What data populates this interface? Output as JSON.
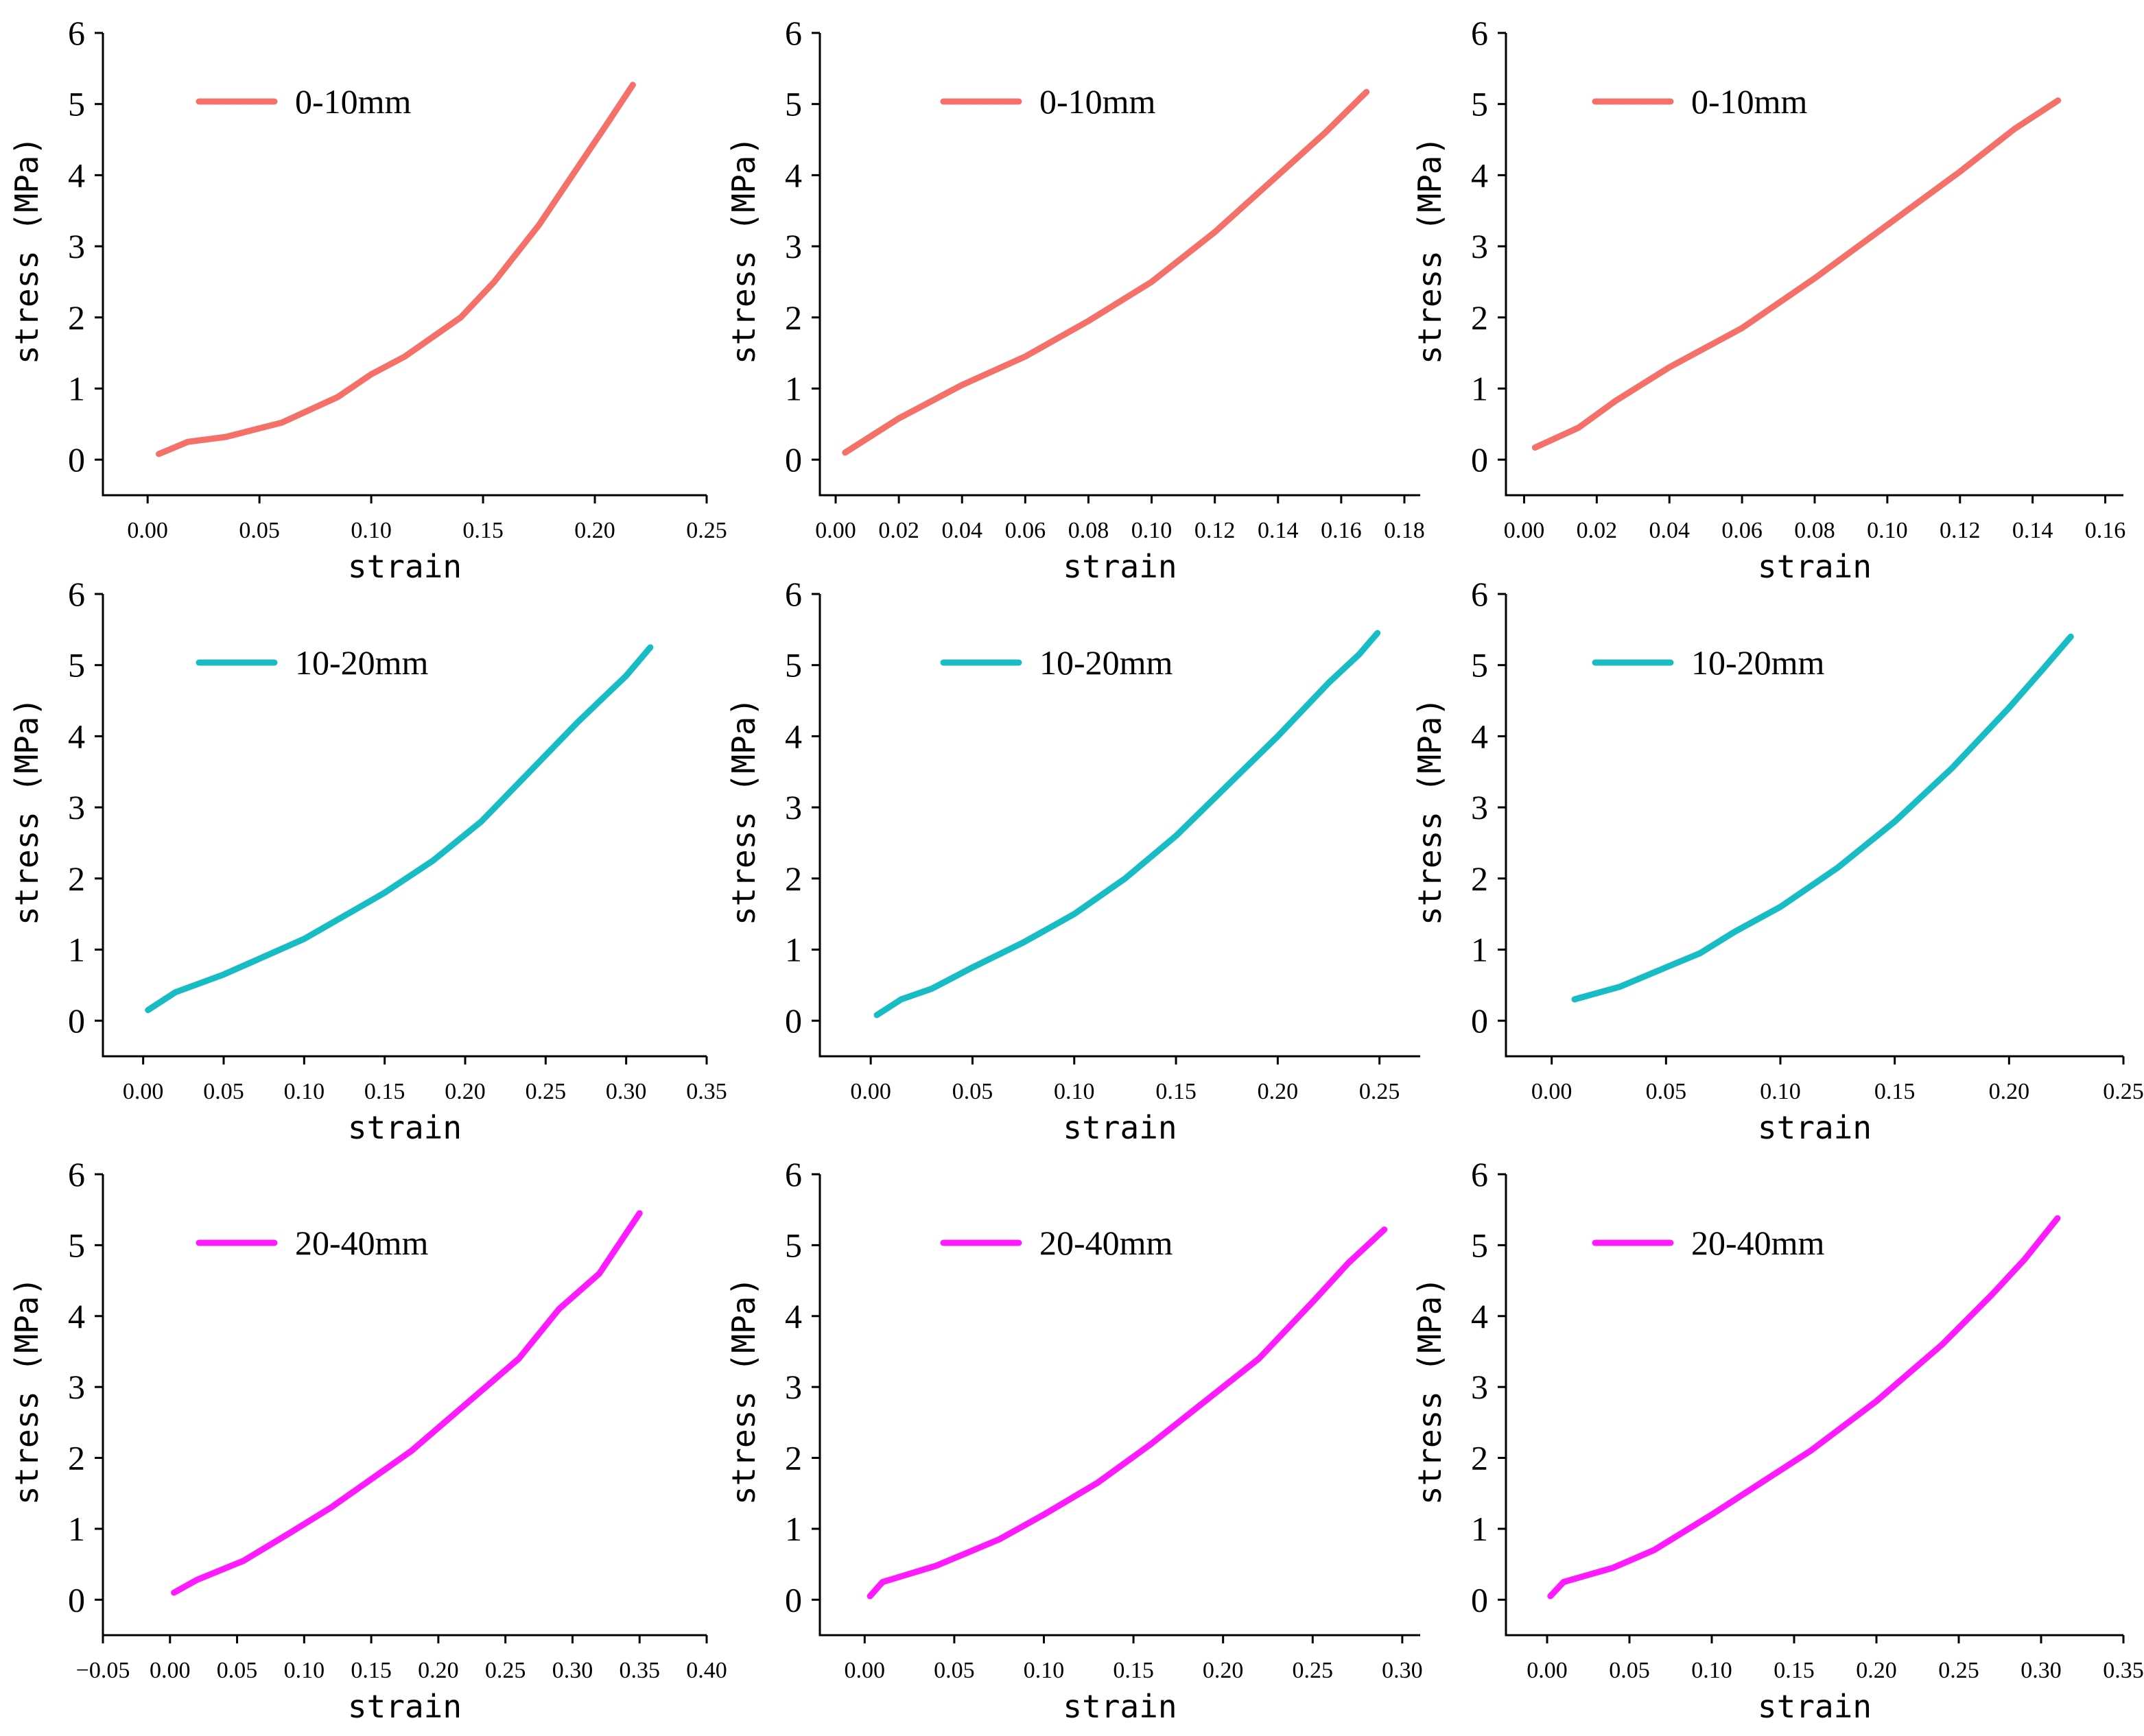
{
  "colors": {
    "0-10mm": "#f47068",
    "10-20mm": "#17bcc4",
    "20-40mm": "#ff1aff"
  },
  "chart_data": [
    {
      "type": "line",
      "xlabel": "strain",
      "ylabel": "stress (MPa)",
      "xlim": [
        -0.02,
        0.25
      ],
      "ylim": [
        -0.5,
        6
      ],
      "xticks": [
        "0.00",
        "0.05",
        "0.10",
        "0.15",
        "0.20",
        "0.25"
      ],
      "yticks": [
        "0",
        "1",
        "2",
        "3",
        "4",
        "5",
        "6"
      ],
      "series": [
        {
          "name": "0-10mm",
          "color": "#f47068",
          "x": [
            0.005,
            0.018,
            0.035,
            0.06,
            0.085,
            0.1,
            0.115,
            0.14,
            0.155,
            0.175,
            0.19,
            0.205,
            0.217
          ],
          "y": [
            0.08,
            0.25,
            0.32,
            0.52,
            0.88,
            1.2,
            1.45,
            2.0,
            2.5,
            3.3,
            4.0,
            4.7,
            5.27
          ]
        }
      ]
    },
    {
      "type": "line",
      "xlabel": "strain",
      "ylabel": "stress (MPa)",
      "xlim": [
        -0.005,
        0.185
      ],
      "ylim": [
        -0.5,
        6
      ],
      "xticks": [
        "0.00",
        "0.02",
        "0.04",
        "0.06",
        "0.08",
        "0.10",
        "0.12",
        "0.14",
        "0.16",
        "0.18"
      ],
      "yticks": [
        "0",
        "1",
        "2",
        "3",
        "4",
        "5",
        "6"
      ],
      "series": [
        {
          "name": "0-10mm",
          "color": "#f47068",
          "x": [
            0.003,
            0.02,
            0.04,
            0.06,
            0.08,
            0.1,
            0.12,
            0.14,
            0.155,
            0.168
          ],
          "y": [
            0.1,
            0.58,
            1.05,
            1.45,
            1.95,
            2.5,
            3.2,
            4.0,
            4.6,
            5.17
          ]
        }
      ]
    },
    {
      "type": "line",
      "xlabel": "strain",
      "ylabel": "stress (MPa)",
      "xlim": [
        -0.005,
        0.165
      ],
      "ylim": [
        -0.5,
        6
      ],
      "xticks": [
        "0.00",
        "0.02",
        "0.04",
        "0.06",
        "0.08",
        "0.10",
        "0.12",
        "0.14",
        "0.16"
      ],
      "yticks": [
        "0",
        "1",
        "2",
        "3",
        "4",
        "5",
        "6"
      ],
      "series": [
        {
          "name": "0-10mm",
          "color": "#f47068",
          "x": [
            0.003,
            0.015,
            0.025,
            0.04,
            0.06,
            0.08,
            0.1,
            0.12,
            0.135,
            0.147
          ],
          "y": [
            0.17,
            0.45,
            0.82,
            1.3,
            1.85,
            2.55,
            3.3,
            4.05,
            4.65,
            5.05
          ]
        }
      ]
    },
    {
      "type": "line",
      "xlabel": "strain",
      "ylabel": "stress (MPa)",
      "xlim": [
        -0.025,
        0.35
      ],
      "ylim": [
        -0.5,
        6
      ],
      "xticks": [
        "0.00",
        "0.05",
        "0.10",
        "0.15",
        "0.20",
        "0.25",
        "0.30",
        "0.35"
      ],
      "yticks": [
        "0",
        "1",
        "2",
        "3",
        "4",
        "5",
        "6"
      ],
      "series": [
        {
          "name": "10-20mm",
          "color": "#17bcc4",
          "x": [
            0.003,
            0.02,
            0.05,
            0.1,
            0.15,
            0.18,
            0.21,
            0.24,
            0.27,
            0.3,
            0.315
          ],
          "y": [
            0.15,
            0.4,
            0.65,
            1.15,
            1.8,
            2.25,
            2.8,
            3.5,
            4.2,
            4.85,
            5.25
          ]
        }
      ]
    },
    {
      "type": "line",
      "xlabel": "strain",
      "ylabel": "stress (MPa)",
      "xlim": [
        -0.025,
        0.27
      ],
      "ylim": [
        -0.5,
        6
      ],
      "xticks": [
        "0.00",
        "0.05",
        "0.10",
        "0.15",
        "0.20",
        "0.25"
      ],
      "yticks": [
        "0",
        "1",
        "2",
        "3",
        "4",
        "5",
        "6"
      ],
      "series": [
        {
          "name": "10-20mm",
          "color": "#17bcc4",
          "x": [
            0.003,
            0.015,
            0.03,
            0.05,
            0.075,
            0.1,
            0.125,
            0.15,
            0.175,
            0.2,
            0.225,
            0.24,
            0.249
          ],
          "y": [
            0.08,
            0.3,
            0.45,
            0.75,
            1.1,
            1.5,
            2.0,
            2.6,
            3.3,
            4.0,
            4.75,
            5.15,
            5.45
          ]
        }
      ]
    },
    {
      "type": "line",
      "xlabel": "strain",
      "ylabel": "stress (MPa)",
      "xlim": [
        -0.02,
        0.25
      ],
      "ylim": [
        -0.5,
        6
      ],
      "xticks": [
        "0.00",
        "0.05",
        "0.10",
        "0.15",
        "0.20",
        "0.25"
      ],
      "yticks": [
        "0",
        "1",
        "2",
        "3",
        "4",
        "5",
        "6"
      ],
      "series": [
        {
          "name": "10-20mm",
          "color": "#17bcc4",
          "x": [
            0.01,
            0.03,
            0.05,
            0.065,
            0.08,
            0.1,
            0.125,
            0.15,
            0.175,
            0.2,
            0.215,
            0.227
          ],
          "y": [
            0.3,
            0.48,
            0.75,
            0.95,
            1.25,
            1.6,
            2.15,
            2.8,
            3.55,
            4.4,
            4.95,
            5.4
          ]
        }
      ]
    },
    {
      "type": "line",
      "xlabel": "strain",
      "ylabel": "stress (MPa)",
      "xlim": [
        -0.05,
        0.4
      ],
      "ylim": [
        -0.5,
        6
      ],
      "xticks": [
        "−0.05",
        "0.00",
        "0.05",
        "0.10",
        "0.15",
        "0.20",
        "0.25",
        "0.30",
        "0.35",
        "0.40"
      ],
      "yticks": [
        "0",
        "1",
        "2",
        "3",
        "4",
        "5",
        "6"
      ],
      "series": [
        {
          "name": "20-40mm",
          "color": "#ff1aff",
          "x": [
            0.003,
            0.02,
            0.055,
            0.09,
            0.12,
            0.15,
            0.18,
            0.22,
            0.26,
            0.29,
            0.32,
            0.35
          ],
          "y": [
            0.1,
            0.28,
            0.55,
            0.95,
            1.3,
            1.7,
            2.1,
            2.75,
            3.4,
            4.1,
            4.6,
            5.45
          ]
        }
      ]
    },
    {
      "type": "line",
      "xlabel": "strain",
      "ylabel": "stress (MPa)",
      "xlim": [
        -0.025,
        0.31
      ],
      "ylim": [
        -0.5,
        6
      ],
      "xticks": [
        "0.00",
        "0.05",
        "0.10",
        "0.15",
        "0.20",
        "0.25",
        "0.30"
      ],
      "yticks": [
        "0",
        "1",
        "2",
        "3",
        "4",
        "5",
        "6"
      ],
      "series": [
        {
          "name": "20-40mm",
          "color": "#ff1aff",
          "x": [
            0.003,
            0.01,
            0.04,
            0.075,
            0.1,
            0.13,
            0.16,
            0.19,
            0.22,
            0.25,
            0.27,
            0.29
          ],
          "y": [
            0.05,
            0.25,
            0.48,
            0.85,
            1.2,
            1.65,
            2.2,
            2.8,
            3.4,
            4.2,
            4.75,
            5.22
          ]
        }
      ]
    },
    {
      "type": "line",
      "xlabel": "strain",
      "ylabel": "stress (MPa)",
      "xlim": [
        -0.025,
        0.35
      ],
      "ylim": [
        -0.5,
        6
      ],
      "xticks": [
        "0.00",
        "0.05",
        "0.10",
        "0.15",
        "0.20",
        "0.25",
        "0.30",
        "0.35"
      ],
      "yticks": [
        "0",
        "1",
        "2",
        "3",
        "4",
        "5",
        "6"
      ],
      "series": [
        {
          "name": "20-40mm",
          "color": "#ff1aff",
          "x": [
            0.002,
            0.01,
            0.04,
            0.065,
            0.1,
            0.13,
            0.16,
            0.2,
            0.24,
            0.27,
            0.29,
            0.31
          ],
          "y": [
            0.05,
            0.25,
            0.45,
            0.7,
            1.2,
            1.65,
            2.1,
            2.8,
            3.6,
            4.3,
            4.8,
            5.38
          ]
        }
      ]
    }
  ]
}
